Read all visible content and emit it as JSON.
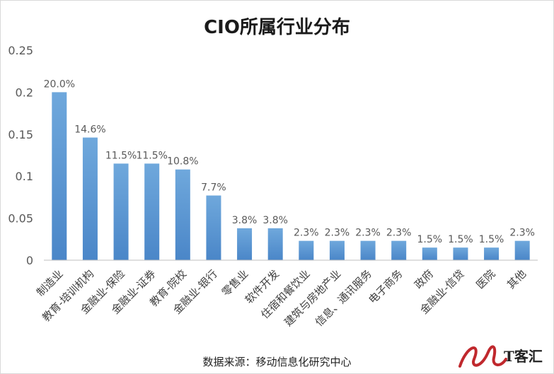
{
  "chart_data": {
    "type": "bar",
    "title": "CIO所属行业分布",
    "categories": [
      "制造业",
      "教育-培训机构",
      "金融业-保险",
      "金融业-证券",
      "教育-院校",
      "金融业-银行",
      "零售业",
      "软件开发",
      "住宿和餐饮业",
      "建筑与房地产业",
      "信息、通讯服务",
      "电子商务",
      "政府",
      "金融业-信贷",
      "医院",
      "其他"
    ],
    "values": [
      0.2,
      0.146,
      0.115,
      0.115,
      0.108,
      0.077,
      0.038,
      0.038,
      0.023,
      0.023,
      0.023,
      0.023,
      0.015,
      0.015,
      0.015,
      0.023
    ],
    "data_labels": [
      "20.0%",
      "14.6%",
      "11.5%",
      "11.5%",
      "10.8%",
      "7.7%",
      "3.8%",
      "3.8%",
      "2.3%",
      "2.3%",
      "2.3%",
      "2.3%",
      "1.5%",
      "1.5%",
      "1.5%",
      "2.3%"
    ],
    "yticks": [
      "0",
      "0.05",
      "0.1",
      "0.15",
      "0.2",
      "0.25"
    ],
    "ylim": [
      0,
      0.25
    ],
    "grid": false,
    "bar_color": "#5b9bd5"
  },
  "footer": {
    "source": "数据来源：移动信息化研究中心"
  },
  "logo": {
    "text": "T客汇"
  }
}
